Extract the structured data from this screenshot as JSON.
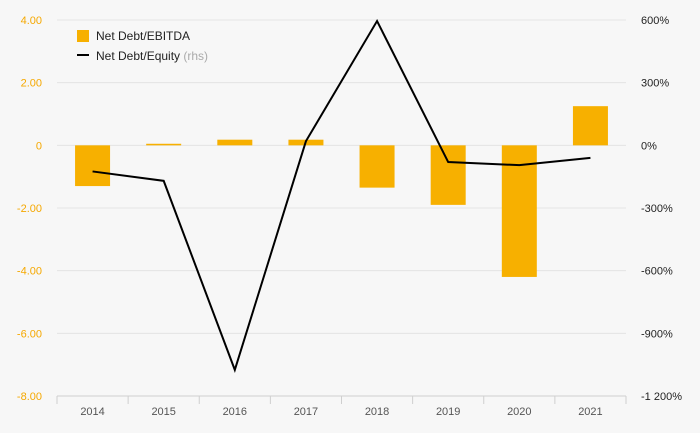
{
  "chart_data": {
    "type": "bar",
    "categories": [
      "2014",
      "2015",
      "2016",
      "2017",
      "2018",
      "2019",
      "2020",
      "2021"
    ],
    "series": [
      {
        "name": "Net Debt/EBITDA",
        "type": "bar",
        "axis": "left",
        "color": "#f7b000",
        "values": [
          -1.3,
          0.05,
          0.18,
          0.18,
          -1.35,
          -1.9,
          -4.2,
          1.25
        ]
      },
      {
        "name": "Net Debt/Equity",
        "type": "line",
        "axis": "right",
        "color": "#000000",
        "values": [
          -125,
          -170,
          -1075,
          20,
          595,
          -80,
          -95,
          -60
        ]
      }
    ],
    "legend": {
      "entries": [
        "Net Debt/EBITDA",
        "Net Debt/Equity"
      ],
      "secondary_suffix": "(rhs)",
      "placement": "top-left"
    },
    "left_axis": {
      "ylim": [
        -8,
        4
      ],
      "ticks": [
        4,
        2,
        0,
        -2,
        -4,
        -6,
        -8
      ],
      "tick_labels": [
        "4.00",
        "2.00",
        "0",
        "-2.00",
        "-4.00",
        "-6.00",
        "-8.00"
      ],
      "color": "#f5a800"
    },
    "right_axis": {
      "ylim": [
        -1200,
        600
      ],
      "ticks": [
        600,
        300,
        0,
        -300,
        -600,
        -900,
        -1200
      ],
      "tick_labels": [
        "600%",
        "300%",
        "0%",
        "-300%",
        "-600%",
        "-900%",
        "-1 200%"
      ]
    },
    "grid": true
  }
}
